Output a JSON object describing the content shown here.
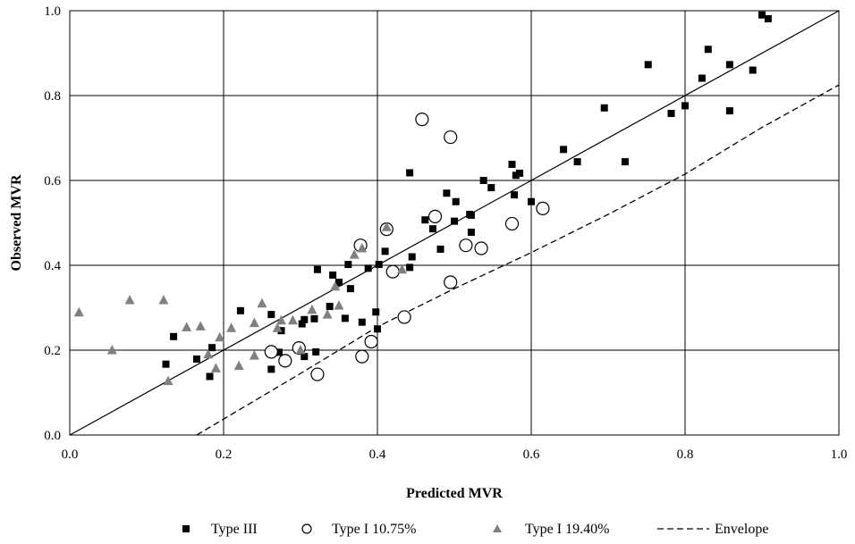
{
  "chart_data": {
    "type": "scatter",
    "title": "",
    "xlabel": "Predicted MVR",
    "ylabel": "Observed MVR",
    "xlim": [
      0,
      1
    ],
    "ylim": [
      0,
      1
    ],
    "x_ticks": [
      "0.0",
      "0.2",
      "0.4",
      "0.6",
      "0.8",
      "1.0"
    ],
    "y_ticks": [
      "0.0",
      "0.2",
      "0.4",
      "0.6",
      "0.8",
      "1.0"
    ],
    "grid": true,
    "legend_position": "bottom",
    "series": [
      {
        "name": "Type III",
        "marker": "square",
        "color": "#000000",
        "points": [
          [
            0.125,
            0.167
          ],
          [
            0.135,
            0.232
          ],
          [
            0.165,
            0.179
          ],
          [
            0.182,
            0.138
          ],
          [
            0.185,
            0.206
          ],
          [
            0.222,
            0.293
          ],
          [
            0.262,
            0.284
          ],
          [
            0.262,
            0.155
          ],
          [
            0.272,
            0.195
          ],
          [
            0.275,
            0.246
          ],
          [
            0.302,
            0.262
          ],
          [
            0.305,
            0.272
          ],
          [
            0.305,
            0.185
          ],
          [
            0.318,
            0.274
          ],
          [
            0.32,
            0.196
          ],
          [
            0.322,
            0.39
          ],
          [
            0.338,
            0.303
          ],
          [
            0.342,
            0.377
          ],
          [
            0.35,
            0.36
          ],
          [
            0.358,
            0.275
          ],
          [
            0.362,
            0.402
          ],
          [
            0.365,
            0.345
          ],
          [
            0.38,
            0.266
          ],
          [
            0.388,
            0.393
          ],
          [
            0.398,
            0.29
          ],
          [
            0.4,
            0.25
          ],
          [
            0.402,
            0.402
          ],
          [
            0.41,
            0.433
          ],
          [
            0.442,
            0.395
          ],
          [
            0.442,
            0.618
          ],
          [
            0.445,
            0.42
          ],
          [
            0.462,
            0.507
          ],
          [
            0.472,
            0.486
          ],
          [
            0.482,
            0.438
          ],
          [
            0.49,
            0.57
          ],
          [
            0.5,
            0.504
          ],
          [
            0.502,
            0.55
          ],
          [
            0.52,
            0.52
          ],
          [
            0.522,
            0.518
          ],
          [
            0.522,
            0.478
          ],
          [
            0.538,
            0.6
          ],
          [
            0.548,
            0.583
          ],
          [
            0.575,
            0.638
          ],
          [
            0.578,
            0.566
          ],
          [
            0.58,
            0.612
          ],
          [
            0.585,
            0.617
          ],
          [
            0.6,
            0.55
          ],
          [
            0.642,
            0.673
          ],
          [
            0.66,
            0.644
          ],
          [
            0.695,
            0.771
          ],
          [
            0.722,
            0.644
          ],
          [
            0.752,
            0.873
          ],
          [
            0.782,
            0.758
          ],
          [
            0.8,
            0.776
          ],
          [
            0.822,
            0.841
          ],
          [
            0.83,
            0.909
          ],
          [
            0.858,
            0.873
          ],
          [
            0.858,
            0.764
          ],
          [
            0.888,
            0.86
          ],
          [
            0.9,
            0.99
          ],
          [
            0.908,
            0.981
          ]
        ]
      },
      {
        "name": "Type I 10.75%",
        "marker": "circle",
        "color": "#000000",
        "points": [
          [
            0.262,
            0.196
          ],
          [
            0.28,
            0.175
          ],
          [
            0.298,
            0.205
          ],
          [
            0.322,
            0.143
          ],
          [
            0.378,
            0.447
          ],
          [
            0.38,
            0.185
          ],
          [
            0.392,
            0.22
          ],
          [
            0.412,
            0.485
          ],
          [
            0.42,
            0.385
          ],
          [
            0.435,
            0.278
          ],
          [
            0.458,
            0.744
          ],
          [
            0.475,
            0.515
          ],
          [
            0.495,
            0.702
          ],
          [
            0.495,
            0.36
          ],
          [
            0.515,
            0.447
          ],
          [
            0.535,
            0.44
          ],
          [
            0.575,
            0.498
          ],
          [
            0.615,
            0.534
          ]
        ]
      },
      {
        "name": "Type I 19.40%",
        "marker": "triangle",
        "color": "#808080",
        "points": [
          [
            0.012,
            0.289
          ],
          [
            0.055,
            0.2
          ],
          [
            0.078,
            0.318
          ],
          [
            0.122,
            0.318
          ],
          [
            0.128,
            0.127
          ],
          [
            0.152,
            0.254
          ],
          [
            0.17,
            0.256
          ],
          [
            0.18,
            0.19
          ],
          [
            0.19,
            0.157
          ],
          [
            0.195,
            0.23
          ],
          [
            0.21,
            0.252
          ],
          [
            0.22,
            0.163
          ],
          [
            0.24,
            0.187
          ],
          [
            0.24,
            0.264
          ],
          [
            0.25,
            0.31
          ],
          [
            0.27,
            0.252
          ],
          [
            0.275,
            0.27
          ],
          [
            0.29,
            0.27
          ],
          [
            0.3,
            0.2
          ],
          [
            0.315,
            0.295
          ],
          [
            0.335,
            0.284
          ],
          [
            0.345,
            0.35
          ],
          [
            0.35,
            0.305
          ],
          [
            0.37,
            0.425
          ],
          [
            0.38,
            0.44
          ],
          [
            0.412,
            0.49
          ],
          [
            0.432,
            0.39
          ]
        ]
      }
    ],
    "lines": [
      {
        "name": "",
        "style": "solid",
        "x": [
          0,
          1
        ],
        "y": [
          0,
          1
        ]
      },
      {
        "name": "Envelope",
        "style": "dashed",
        "x": [
          0.165,
          0.3,
          0.4,
          0.5,
          0.6,
          0.7,
          0.8,
          0.9,
          1.0
        ],
        "y": [
          0.0,
          0.145,
          0.255,
          0.345,
          0.43,
          0.52,
          0.615,
          0.725,
          0.825
        ]
      }
    ],
    "legend": [
      {
        "label": "Type III",
        "marker": "square"
      },
      {
        "label": "Type I 10.75%",
        "marker": "circle"
      },
      {
        "label": "Type I 19.40%",
        "marker": "triangle"
      },
      {
        "label": "Envelope",
        "marker": "dashed-line"
      }
    ]
  }
}
